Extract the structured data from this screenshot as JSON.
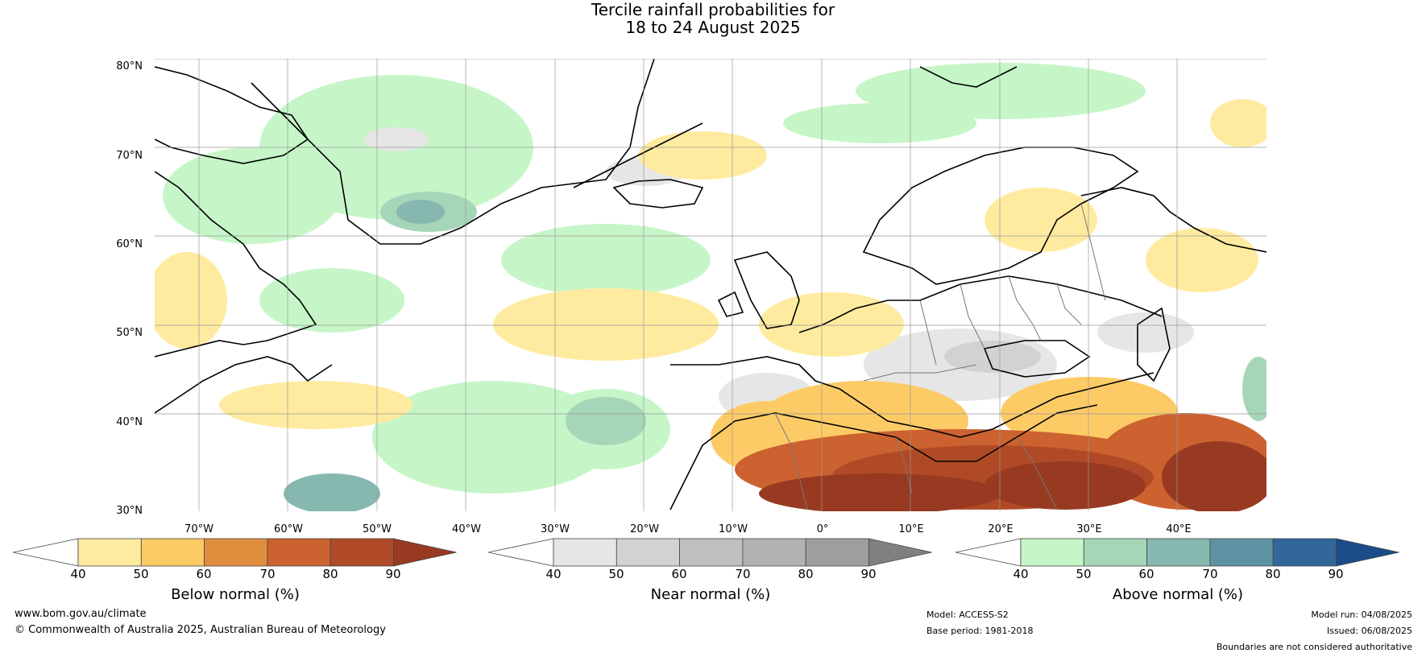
{
  "title": {
    "line1": "Tercile rainfall probabilities for",
    "line2": "18 to 24 August 2025"
  },
  "map": {
    "lat_labels": [
      "80°N",
      "70°N",
      "60°N",
      "50°N",
      "40°N",
      "30°N"
    ],
    "lon_labels": [
      "70°W",
      "60°W",
      "50°W",
      "40°W",
      "30°W",
      "20°W",
      "10°W",
      "0°",
      "10°E",
      "20°E",
      "30°E",
      "40°E"
    ],
    "colors": {
      "below": [
        "#ffeba0",
        "#fdcb66",
        "#e08e3e",
        "#cc6230",
        "#b04a26",
        "#983a22"
      ],
      "near": [
        "#e6e6e6",
        "#d2d2d2",
        "#c0c0c0",
        "#b2b2b2",
        "#9e9e9e",
        "#808080"
      ],
      "above": [
        "#c6f6c8",
        "#a6d6b8",
        "#86b8b0",
        "#5f93a3",
        "#336699",
        "#1a4c88"
      ]
    }
  },
  "colorbars": [
    {
      "label": "Below normal (%)",
      "ticks": [
        "40",
        "50",
        "60",
        "70",
        "80",
        "90"
      ]
    },
    {
      "label": "Near normal (%)",
      "ticks": [
        "40",
        "50",
        "60",
        "70",
        "80",
        "90"
      ]
    },
    {
      "label": "Above normal (%)",
      "ticks": [
        "40",
        "50",
        "60",
        "70",
        "80",
        "90"
      ]
    }
  ],
  "footer": {
    "website": "www.bom.gov.au/climate",
    "copyright": "© Commonwealth of Australia 2025, Australian Bureau of Meteorology",
    "model": "Model: ACCESS-S2",
    "base_period": "Base period: 1981-2018",
    "model_run": "Model run: 04/08/2025",
    "issued": "Issued: 06/08/2025",
    "disclaimer": "Boundaries are not considered authoritative"
  }
}
